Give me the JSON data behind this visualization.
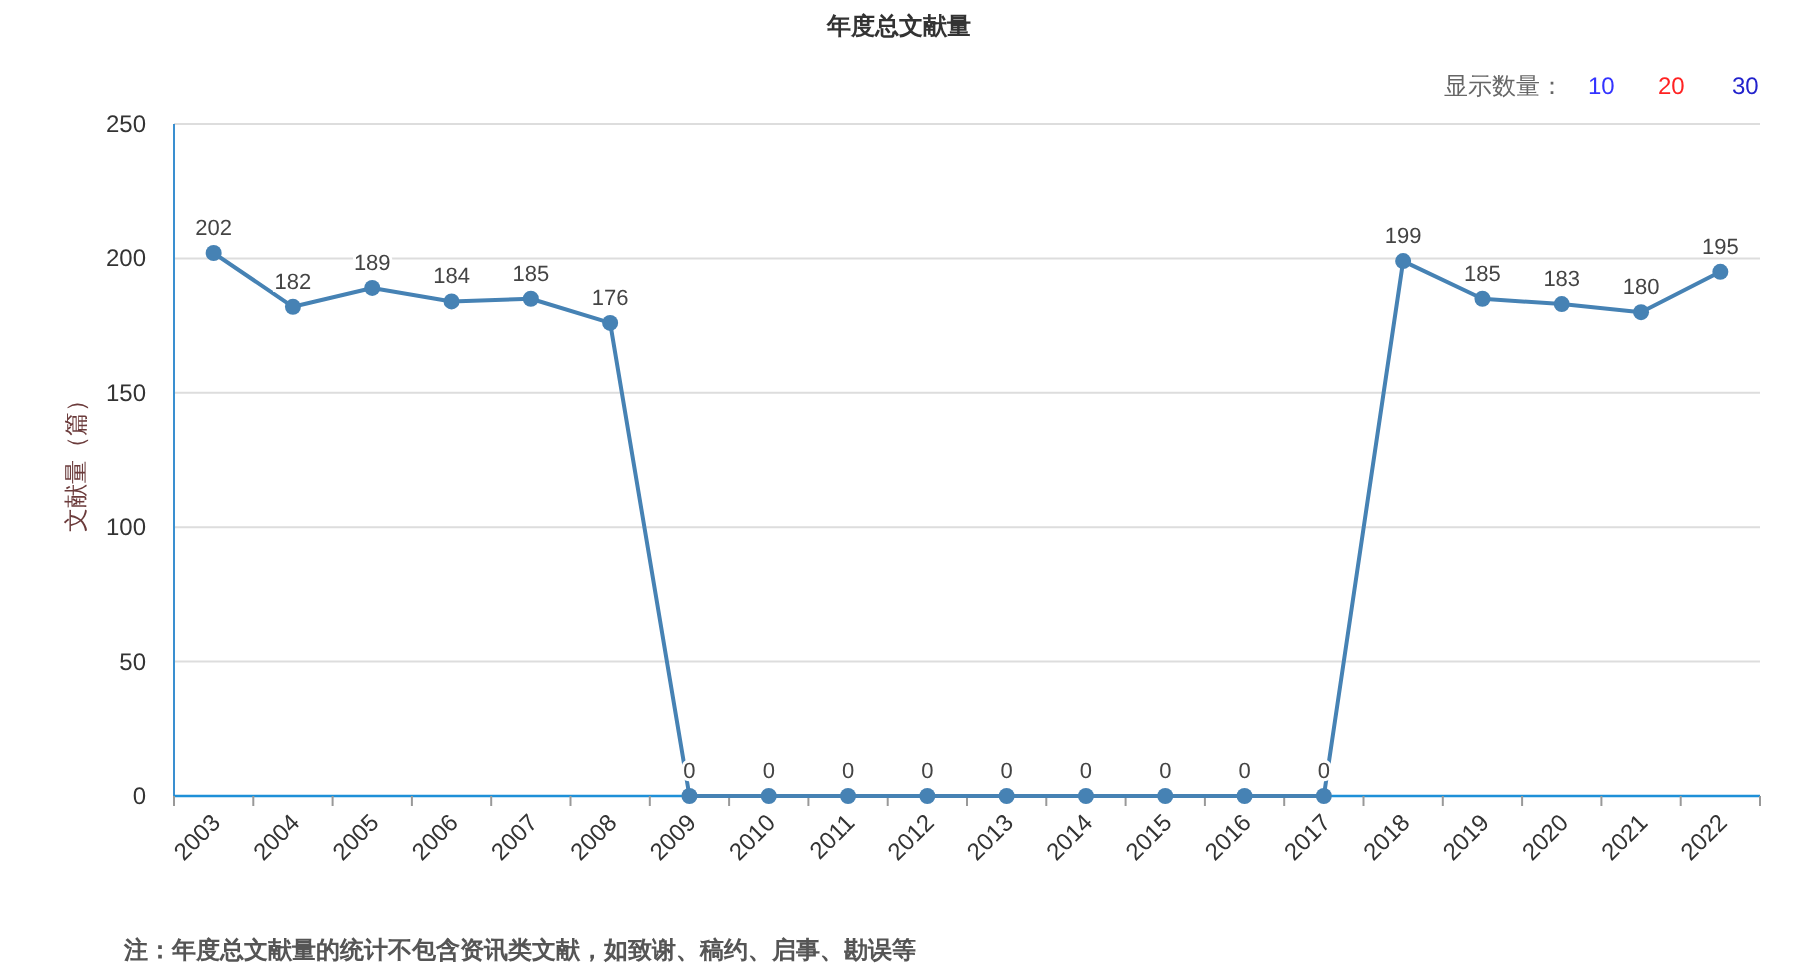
{
  "chart_data": {
    "type": "line",
    "title": "年度总文献量",
    "ylabel": "文献量（篇）",
    "categories": [
      "2003",
      "2004",
      "2005",
      "2006",
      "2007",
      "2008",
      "2009",
      "2010",
      "2011",
      "2012",
      "2013",
      "2014",
      "2015",
      "2016",
      "2017",
      "2018",
      "2019",
      "2020",
      "2021",
      "2022"
    ],
    "series": [
      {
        "color": "#4682b4",
        "values": [
          202,
          182,
          189,
          184,
          185,
          176,
          0,
          0,
          0,
          0,
          0,
          0,
          0,
          0,
          0,
          199,
          185,
          183,
          180,
          195
        ]
      }
    ],
    "ylim": [
      0,
      250
    ],
    "yticks": [
      0,
      50,
      100,
      150,
      200,
      250
    ],
    "grid": "y",
    "marker": "circle",
    "line_style": "solid",
    "data_labels": true,
    "annotations": [
      "注：年度总文献量的统计不包含资讯类文献，如致谢、稿约、启事、勘误等",
      "显示数量：",
      "10",
      "20",
      "30"
    ]
  }
}
